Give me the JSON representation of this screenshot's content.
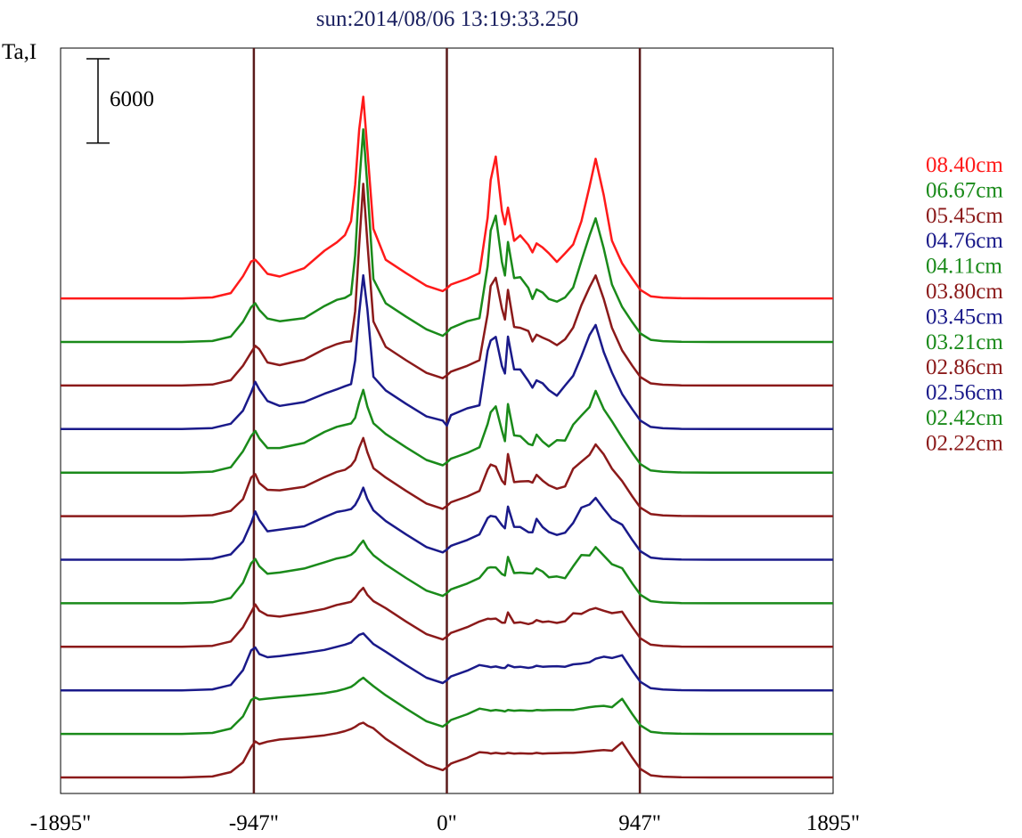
{
  "chart_data": {
    "type": "line",
    "title": "sun:2014/08/06 13:19:33.250",
    "ylabel": "Ta,I",
    "scale_bar_label": "6000",
    "scale_bar_value": 6000,
    "xlim": [
      -1895,
      1895
    ],
    "x_ticks": [
      {
        "value": -1895,
        "label": "-1895\""
      },
      {
        "value": -947,
        "label": "-947\""
      },
      {
        "value": 0,
        "label": "0\""
      },
      {
        "value": 947,
        "label": "947\""
      },
      {
        "value": 1895,
        "label": "1895\""
      }
    ],
    "vertical_lines": [
      -947,
      0,
      947
    ],
    "vertical_line_color": "#5a1a1a",
    "x": [
      -1895,
      -1700,
      -1500,
      -1300,
      -1150,
      -1060,
      -1000,
      -960,
      -940,
      -920,
      -880,
      -820,
      -700,
      -600,
      -540,
      -500,
      -470,
      -450,
      -430,
      -410,
      -390,
      -360,
      -300,
      -200,
      -100,
      -20,
      0,
      20,
      100,
      160,
      200,
      215,
      240,
      270,
      285,
      300,
      330,
      360,
      400,
      420,
      440,
      470,
      500,
      540,
      580,
      620,
      660,
      700,
      730,
      770,
      810,
      860,
      910,
      950,
      1000,
      1060,
      1150,
      1300,
      1400,
      1500,
      1700,
      1895
    ],
    "series": [
      {
        "name": "08.40cm",
        "color": "#ff1a1a",
        "values": [
          0,
          0,
          0,
          0,
          70,
          380,
          1580,
          2630,
          2750,
          2450,
          1750,
          1560,
          2150,
          3400,
          3990,
          4500,
          5500,
          8090,
          12010,
          14360,
          10610,
          4950,
          2750,
          1800,
          900,
          520,
          720,
          990,
          1400,
          1800,
          5760,
          8430,
          10100,
          6230,
          5270,
          6470,
          4100,
          4490,
          3810,
          3280,
          3920,
          3630,
          3220,
          2600,
          3210,
          3840,
          5490,
          7950,
          9940,
          7350,
          4110,
          2500,
          1400,
          600,
          150,
          60,
          10,
          0,
          0,
          0,
          0,
          0
        ]
      },
      {
        "name": "06.67cm",
        "color": "#1a8a1a",
        "values": [
          0,
          0,
          0,
          0,
          70,
          380,
          1440,
          2480,
          2750,
          2280,
          1670,
          1480,
          1690,
          2560,
          3000,
          3140,
          3400,
          6160,
          11230,
          15140,
          11080,
          4480,
          2750,
          1800,
          900,
          440,
          680,
          990,
          1480,
          1690,
          5400,
          7940,
          8990,
          5700,
          4730,
          7120,
          4550,
          4610,
          3840,
          3060,
          3740,
          3520,
          3060,
          2870,
          3170,
          3880,
          5770,
          7570,
          8800,
          6650,
          4090,
          2500,
          1400,
          600,
          150,
          60,
          10,
          0,
          0,
          0,
          0,
          0
        ]
      },
      {
        "name": "05.45cm",
        "color": "#8b1a1a",
        "values": [
          0,
          0,
          0,
          0,
          70,
          380,
          1410,
          2360,
          2830,
          2590,
          1640,
          1450,
          1840,
          2600,
          2950,
          3100,
          3150,
          5290,
          10010,
          14360,
          10210,
          4560,
          2750,
          1800,
          900,
          520,
          720,
          990,
          1400,
          1800,
          5100,
          7090,
          7670,
          5470,
          4700,
          6810,
          4170,
          4110,
          3880,
          3140,
          3620,
          3410,
          3220,
          2870,
          3290,
          4130,
          5720,
          6990,
          7840,
          6160,
          4110,
          2500,
          1400,
          600,
          150,
          60,
          10,
          0,
          0,
          0,
          0,
          0
        ]
      },
      {
        "name": "04.76cm",
        "color": "#1a1a8a",
        "values": [
          0,
          0,
          0,
          0,
          70,
          380,
          1310,
          2610,
          3360,
          2820,
          2000,
          1650,
          1920,
          2520,
          2830,
          3050,
          3200,
          4880,
          8270,
          10950,
          8540,
          3720,
          2750,
          1800,
          900,
          600,
          240,
          990,
          1480,
          1690,
          5580,
          6300,
          6560,
          4490,
          3960,
          6580,
          4250,
          4240,
          3420,
          2950,
          3470,
          3260,
          2780,
          2380,
          3100,
          3800,
          5190,
          6690,
          7410,
          5480,
          4020,
          2500,
          1400,
          600,
          150,
          60,
          10,
          0,
          0,
          0,
          0,
          0
        ]
      },
      {
        "name": "04.11cm",
        "color": "#1a8a1a",
        "values": [
          0,
          0,
          0,
          0,
          70,
          380,
          1520,
          2600,
          2970,
          2440,
          1750,
          1750,
          2110,
          2900,
          3260,
          3400,
          3500,
          3900,
          4990,
          5890,
          4700,
          3510,
          2750,
          1800,
          900,
          520,
          720,
          990,
          1400,
          1800,
          3460,
          4300,
          4720,
          2990,
          2240,
          4880,
          2650,
          2600,
          2050,
          1950,
          2700,
          2210,
          1860,
          2310,
          2280,
          3420,
          4060,
          4670,
          5820,
          4520,
          3650,
          2500,
          1400,
          600,
          150,
          60,
          10,
          0,
          0,
          0,
          0,
          0
        ]
      },
      {
        "name": "03.80cm",
        "color": "#8b1a1a",
        "values": [
          0,
          0,
          0,
          0,
          70,
          380,
          1210,
          2750,
          2990,
          2360,
          1880,
          1840,
          2090,
          2780,
          3150,
          3300,
          3600,
          4000,
          4870,
          5570,
          4550,
          3420,
          2750,
          1800,
          900,
          520,
          720,
          990,
          1400,
          1800,
          3310,
          3670,
          3530,
          2530,
          2270,
          4420,
          2420,
          2470,
          2500,
          2390,
          2940,
          2530,
          2200,
          1950,
          2120,
          3380,
          3880,
          4360,
          5110,
          4400,
          3380,
          2500,
          1400,
          600,
          150,
          60,
          10,
          0,
          0,
          0,
          0,
          0
        ]
      },
      {
        "name": "03.45cm",
        "color": "#1a1a8a",
        "values": [
          0,
          0,
          0,
          0,
          70,
          380,
          1300,
          2620,
          3440,
          2830,
          2020,
          2140,
          2380,
          3030,
          3400,
          3500,
          3600,
          3900,
          4430,
          5130,
          4320,
          3510,
          2750,
          1800,
          900,
          520,
          720,
          990,
          1400,
          1800,
          2960,
          3120,
          3050,
          2460,
          2240,
          3780,
          2340,
          2330,
          1960,
          1950,
          2910,
          2320,
          1970,
          1760,
          1920,
          2620,
          3710,
          3930,
          4400,
          3620,
          2890,
          2500,
          1400,
          600,
          150,
          60,
          10,
          0,
          0,
          0,
          0,
          0
        ]
      },
      {
        "name": "03.21cm",
        "color": "#1a8a1a",
        "values": [
          0,
          0,
          0,
          0,
          70,
          380,
          1460,
          2850,
          3150,
          2640,
          2100,
          2190,
          2470,
          2920,
          3190,
          3300,
          3450,
          3700,
          4110,
          4460,
          3930,
          3420,
          2750,
          1800,
          900,
          520,
          720,
          990,
          1400,
          1800,
          2510,
          2560,
          2550,
          2080,
          1970,
          3300,
          2150,
          2180,
          2130,
          2120,
          2480,
          2260,
          1850,
          1910,
          1780,
          2630,
          3440,
          3400,
          4000,
          3390,
          2780,
          2500,
          1400,
          600,
          150,
          60,
          10,
          0,
          0,
          0,
          0,
          0
        ]
      },
      {
        "name": "02.86cm",
        "color": "#8b1a1a",
        "values": [
          0,
          0,
          0,
          0,
          70,
          380,
          1390,
          2460,
          3020,
          2570,
          2240,
          2150,
          2420,
          2700,
          2980,
          3100,
          3200,
          3500,
          3900,
          4200,
          3700,
          3250,
          2750,
          1800,
          900,
          520,
          720,
          990,
          1400,
          1800,
          2000,
          1980,
          2010,
          1720,
          1710,
          2450,
          1700,
          1750,
          1620,
          1690,
          1900,
          1760,
          1810,
          1700,
          1820,
          2390,
          2340,
          2640,
          2760,
          2570,
          2400,
          2500,
          1400,
          600,
          150,
          60,
          10,
          0,
          0,
          0,
          0,
          0
        ]
      },
      {
        "name": "02.56cm",
        "color": "#1a1a8a",
        "values": [
          0,
          0,
          0,
          0,
          70,
          380,
          1430,
          2850,
          3050,
          2590,
          2360,
          2440,
          2660,
          2880,
          3100,
          3250,
          3400,
          3700,
          3950,
          4050,
          3750,
          3300,
          2750,
          1800,
          900,
          520,
          720,
          990,
          1400,
          1800,
          1700,
          1650,
          1700,
          1600,
          1590,
          1800,
          1650,
          1680,
          1600,
          1640,
          1750,
          1680,
          1700,
          1720,
          1680,
          1850,
          1900,
          2000,
          2250,
          2400,
          2300,
          2500,
          1400,
          600,
          150,
          60,
          10,
          0,
          0,
          0,
          0,
          0
        ]
      },
      {
        "name": "02.42cm",
        "color": "#1a8a1a",
        "values": [
          0,
          0,
          0,
          0,
          70,
          380,
          1240,
          2410,
          2590,
          2450,
          2510,
          2600,
          2750,
          2900,
          3050,
          3200,
          3350,
          3550,
          3800,
          4000,
          3750,
          3400,
          2750,
          1800,
          900,
          520,
          720,
          990,
          1400,
          1800,
          1700,
          1650,
          1700,
          1650,
          1600,
          1700,
          1650,
          1680,
          1650,
          1650,
          1700,
          1680,
          1690,
          1700,
          1700,
          1700,
          1800,
          1900,
          1950,
          2000,
          1900,
          2500,
          1400,
          600,
          150,
          60,
          10,
          0,
          0,
          0,
          0,
          0
        ]
      },
      {
        "name": "02.22cm",
        "color": "#8b1a1a",
        "values": [
          0,
          0,
          0,
          0,
          70,
          380,
          1070,
          2160,
          2560,
          2380,
          2550,
          2700,
          2850,
          3000,
          3150,
          3300,
          3450,
          3600,
          3800,
          3900,
          3700,
          3500,
          2750,
          1800,
          900,
          520,
          720,
          990,
          1400,
          1800,
          1750,
          1700,
          1750,
          1700,
          1700,
          1750,
          1700,
          1720,
          1700,
          1700,
          1750,
          1700,
          1720,
          1730,
          1750,
          1750,
          1800,
          1850,
          1900,
          1950,
          1900,
          2500,
          1400,
          600,
          150,
          60,
          10,
          0,
          0,
          0,
          0,
          0
        ]
      }
    ]
  }
}
